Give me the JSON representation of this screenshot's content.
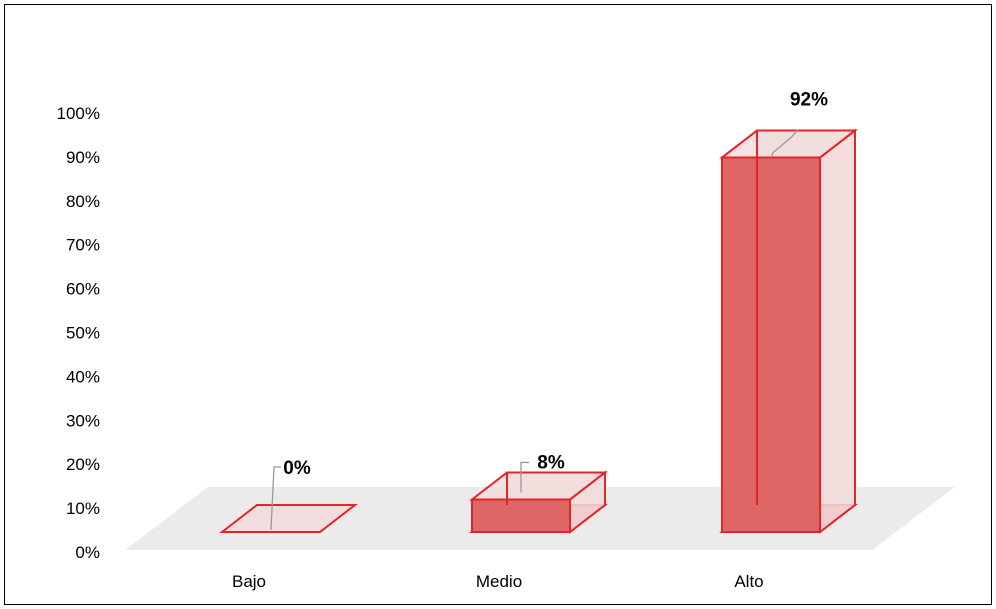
{
  "chart_data": {
    "type": "bar",
    "style": "3d-column",
    "categories": [
      "Bajo",
      "Medio",
      "Alto"
    ],
    "values": [
      0,
      8,
      92
    ],
    "data_labels": [
      "0%",
      "8%",
      "92%"
    ],
    "ylim": [
      0,
      100
    ],
    "yticks": [
      "0%",
      "10%",
      "20%",
      "30%",
      "40%",
      "50%",
      "60%",
      "70%",
      "80%",
      "90%",
      "100%"
    ],
    "title": "",
    "xlabel": "",
    "ylabel": "",
    "grid": false,
    "legend": "none",
    "colors": {
      "bar_front": "#E06666",
      "bar_back": "#F2DCDC",
      "bar_edge": "#E0262B",
      "floor": "#EBEBEB",
      "leader": "#999999"
    }
  }
}
